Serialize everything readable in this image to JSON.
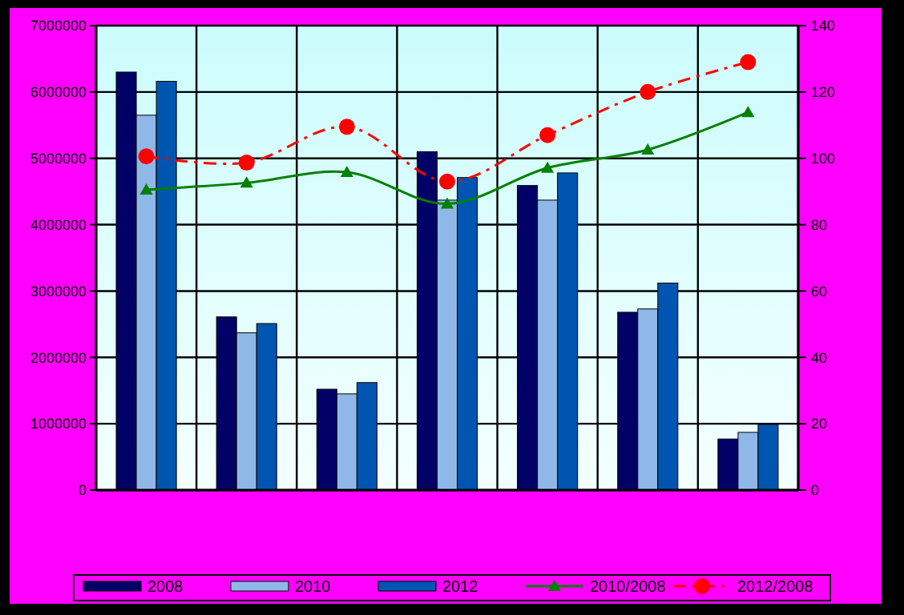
{
  "chart_data": {
    "type": "bar",
    "categories": [
      null,
      null,
      null,
      null,
      null,
      null,
      null
    ],
    "series": [
      {
        "name": "2008",
        "color": "#000066",
        "values": [
          6300000,
          2610000,
          1520000,
          5100000,
          4590000,
          2680000,
          770000
        ]
      },
      {
        "name": "2010",
        "color": "#8fb8e8",
        "values": [
          5650000,
          2370000,
          1450000,
          4370000,
          4370000,
          2730000,
          870000
        ]
      },
      {
        "name": "2012",
        "color": "#0055b0",
        "values": [
          6160000,
          2510000,
          1620000,
          4710000,
          4780000,
          3120000,
          990000
        ]
      },
      {
        "name": "2010/2008",
        "type": "line",
        "axis": "y2",
        "color": "#008000",
        "marker": "triangle",
        "line_style": "solid",
        "values": [
          90.5,
          92.6,
          95.8,
          86.3,
          97.1,
          102.6,
          113.9
        ]
      },
      {
        "name": "2012/2008",
        "type": "line",
        "axis": "y2",
        "color": "#ff0000",
        "marker": "circle",
        "line_style": "dashed",
        "values": [
          100.6,
          98.7,
          109.5,
          93,
          107,
          120,
          129
        ]
      }
    ],
    "ylim": [
      0,
      7000000
    ],
    "yticks": [
      0,
      1000000,
      2000000,
      3000000,
      4000000,
      5000000,
      6000000,
      7000000
    ],
    "y2lim": [
      0,
      140
    ],
    "y2ticks": [
      0,
      20,
      40,
      60,
      80,
      100,
      120,
      140
    ],
    "grid": true,
    "legend": "bottom"
  }
}
